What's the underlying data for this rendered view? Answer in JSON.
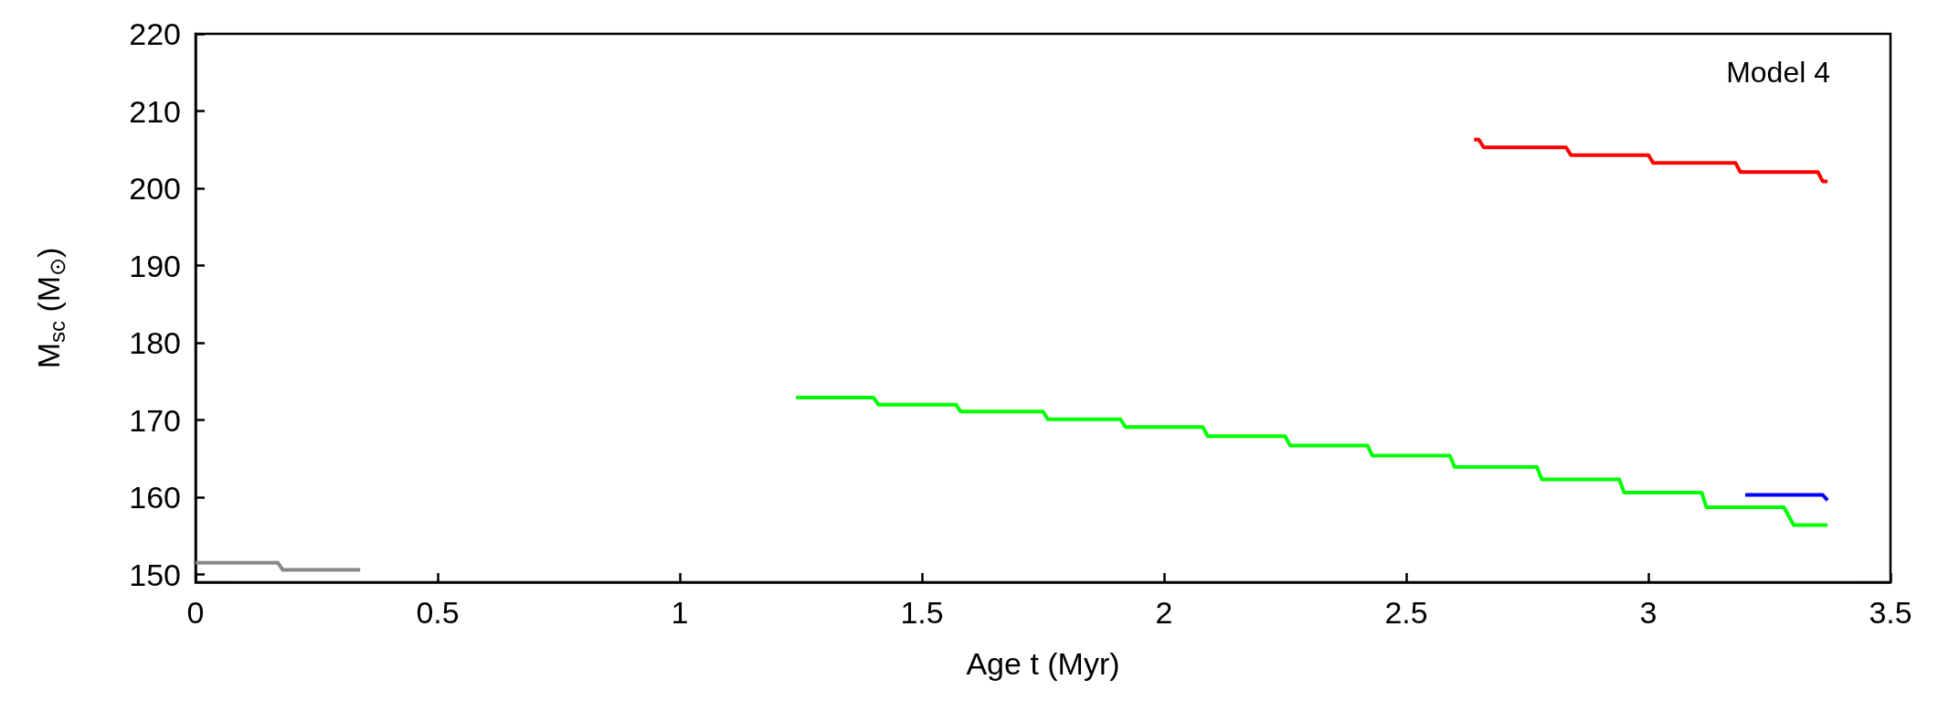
{
  "chart_data": {
    "type": "line",
    "xlabel": "Age t (Myr)",
    "ylabel": "M$_{sc}$ (M$_{⊙}$)",
    "xlim": [
      0,
      3.5
    ],
    "xticks": [
      0,
      0.5,
      1,
      1.5,
      2,
      2.5,
      3,
      3.5
    ],
    "ylim": [
      149,
      220
    ],
    "yticks": [
      150,
      160,
      170,
      180,
      190,
      200,
      210,
      220
    ],
    "grid": false,
    "marker": "none",
    "line_style": "solid",
    "annotations": [
      "Model 4"
    ],
    "series": [
      {
        "color": "#888888",
        "x": [
          0,
          0.17,
          0.18,
          0.34
        ],
        "values": [
          151.5,
          151.5,
          150.6,
          150.6
        ]
      },
      {
        "color": "#00ff00",
        "x": [
          1.24,
          1.4,
          1.41,
          1.57,
          1.58,
          1.75,
          1.76,
          1.91,
          1.92,
          2.08,
          2.09,
          2.25,
          2.26,
          2.42,
          2.43,
          2.59,
          2.6,
          2.77,
          2.78,
          2.94,
          2.95,
          3.11,
          3.12,
          3.28,
          3.3,
          3.37
        ],
        "values": [
          172.9,
          172.9,
          172.0,
          172.0,
          171.1,
          171.1,
          170.1,
          170.1,
          169.1,
          169.1,
          167.9,
          167.9,
          166.7,
          166.7,
          165.4,
          165.4,
          163.9,
          163.9,
          162.3,
          162.3,
          160.6,
          160.6,
          158.7,
          158.7,
          156.4,
          156.4
        ]
      },
      {
        "color": "#ff0000",
        "x": [
          2.64,
          2.65,
          2.66,
          2.83,
          2.84,
          3.0,
          3.01,
          3.18,
          3.19,
          3.35,
          3.36,
          3.37
        ],
        "values": [
          206.3,
          206.3,
          205.3,
          205.3,
          204.3,
          204.3,
          203.3,
          203.3,
          202.1,
          202.1,
          200.9,
          200.9
        ]
      },
      {
        "color": "#0000ff",
        "x": [
          3.2,
          3.36,
          3.37
        ],
        "values": [
          160.3,
          160.3,
          159.6
        ]
      }
    ]
  }
}
